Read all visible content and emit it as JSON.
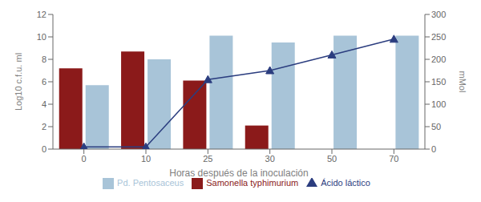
{
  "chart_data": {
    "type": "bar",
    "categories": [
      "0",
      "10",
      "25",
      "30",
      "50",
      "70"
    ],
    "xlabel": "Horas después de la inoculación",
    "ylabel": "Log10 c.f.u. ml",
    "y2label": "mMol",
    "ylim": [
      0,
      12
    ],
    "yticks": [
      0,
      2,
      4,
      6,
      8,
      10,
      12
    ],
    "y2lim": [
      0,
      300
    ],
    "y2ticks": [
      0,
      50,
      100,
      150,
      200,
      250,
      300
    ],
    "grid": false,
    "legend": "bottom",
    "series": [
      {
        "name": "Samonella typhimurium",
        "color": "#8B1A1A",
        "values": [
          7.2,
          8.7,
          6.1,
          2.1,
          0,
          0
        ]
      },
      {
        "name": "Pd. Pentosaceus",
        "color": "#A8C4D8",
        "values": [
          5.7,
          8.0,
          10.1,
          9.5,
          10.1,
          10.1
        ]
      },
      {
        "name": "Ácido láctico",
        "color": "#2B3D7F",
        "values": [
          5,
          5,
          155,
          175,
          210,
          245
        ],
        "axis": "y2",
        "type": "line",
        "marker": "triangle"
      }
    ]
  }
}
